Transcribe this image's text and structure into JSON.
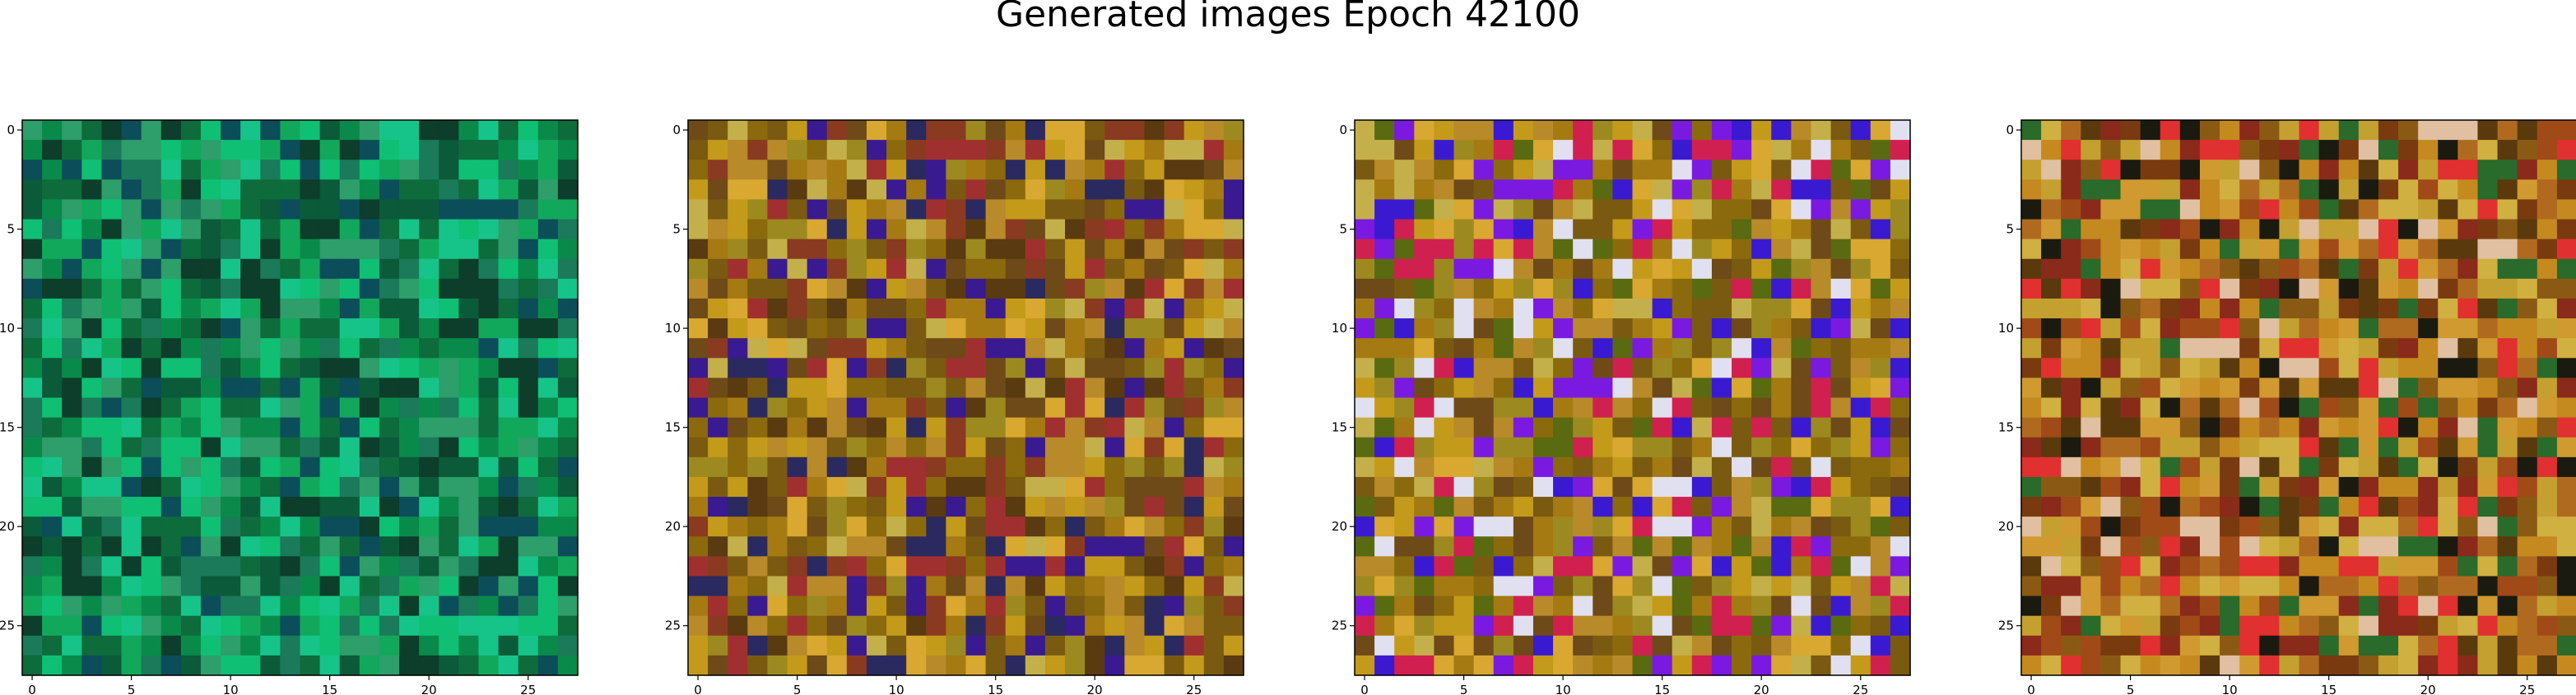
{
  "title": "Generated images Epoch 42100",
  "chart_data": [
    {
      "type": "heatmap",
      "image_size": 28,
      "xticks": [
        0,
        5,
        10,
        15,
        20,
        25
      ],
      "yticks": [
        0,
        5,
        10,
        15,
        20,
        25
      ],
      "xlim": [
        -0.5,
        27.5
      ],
      "ylim": [
        27.5,
        -0.5
      ],
      "palette": [
        "#0e6b3c",
        "#0a8a4a",
        "#12a85c",
        "#0fbf74",
        "#2e9e6a",
        "#0b5a3a",
        "#0d3d2b",
        "#1a7a5a",
        "#16c489",
        "#0c4d5a"
      ]
    },
    {
      "type": "heatmap",
      "image_size": 28,
      "xticks": [
        0,
        5,
        10,
        15,
        20,
        25
      ],
      "yticks": [
        0,
        5,
        10,
        15,
        20,
        25
      ],
      "xlim": [
        -0.5,
        27.5
      ],
      "ylim": [
        27.5,
        -0.5
      ],
      "palette": [
        "#a57a12",
        "#c49a1a",
        "#8a6a0c",
        "#b88a2a",
        "#d8a830",
        "#7a5a10",
        "#9c8a20",
        "#6e4a18",
        "#c4b04a",
        "#8a3a20",
        "#5a3a10",
        "#2a2a60",
        "#3a1a90",
        "#a03030"
      ]
    },
    {
      "type": "heatmap",
      "image_size": 28,
      "xticks": [
        0,
        5,
        10,
        15,
        20,
        25
      ],
      "yticks": [
        0,
        5,
        10,
        15,
        20,
        25
      ],
      "xlim": [
        -0.5,
        27.5
      ],
      "ylim": [
        27.5,
        -0.5
      ],
      "palette": [
        "#a57a12",
        "#c49a1a",
        "#8a6a0c",
        "#b88a2a",
        "#d8a830",
        "#7a5a10",
        "#9c8a20",
        "#6e4a18",
        "#c4b04a",
        "#5a6a10",
        "#3a1ad0",
        "#7a1ae0",
        "#d02050",
        "#e0e0f0"
      ]
    },
    {
      "type": "heatmap",
      "image_size": 28,
      "xticks": [
        0,
        5,
        10,
        15,
        20,
        25
      ],
      "yticks": [
        0,
        5,
        10,
        15,
        20,
        25
      ],
      "xlim": [
        -0.5,
        27.5
      ],
      "ylim": [
        27.5,
        -0.5
      ],
      "palette": [
        "#b06a20",
        "#c48a20",
        "#8a5a14",
        "#d09a30",
        "#7a3a10",
        "#a04a18",
        "#5a3a0c",
        "#c4a030",
        "#1a1a10",
        "#2a6a2a",
        "#e03030",
        "#e0c0a0",
        "#8a2a1a",
        "#d0b040"
      ]
    }
  ]
}
